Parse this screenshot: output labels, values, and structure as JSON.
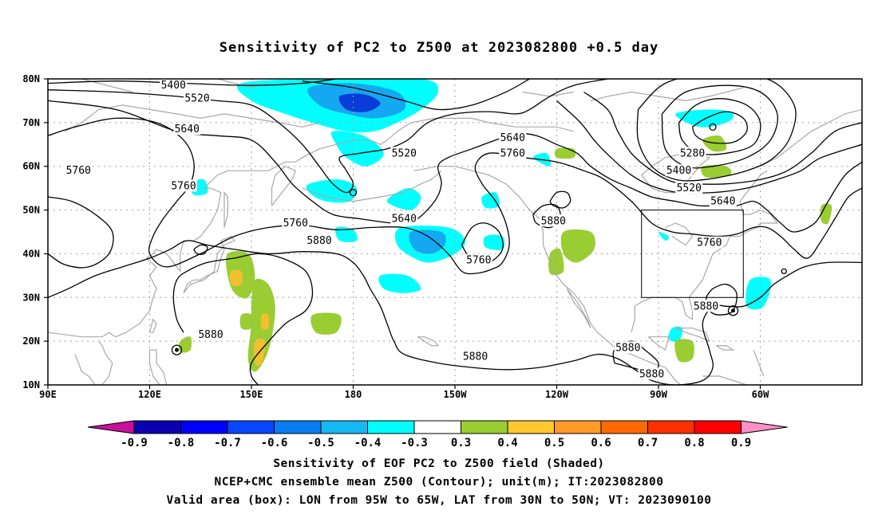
{
  "title": "Sensitivity of PC2 to Z500 at 2023082800 +0.5 day",
  "map": {
    "lat_labels": [
      "80N",
      "70N",
      "60N",
      "50N",
      "40N",
      "30N",
      "20N",
      "10N"
    ],
    "lon_labels": [
      "90E",
      "120E",
      "150E",
      "180",
      "150W",
      "120W",
      "90W",
      "60W"
    ],
    "contour_labels": [
      {
        "text": "5400",
        "lon": 127,
        "lat": 78.5
      },
      {
        "text": "5520",
        "lon": 134,
        "lat": 75.5
      },
      {
        "text": "5640",
        "lon": 131,
        "lat": 68.5
      },
      {
        "text": "5760",
        "lon": 99,
        "lat": 59
      },
      {
        "text": "5760",
        "lon": 130,
        "lat": 55.5
      },
      {
        "text": "5520",
        "lon": 195,
        "lat": 63
      },
      {
        "text": "5640",
        "lon": 227,
        "lat": 66.5
      },
      {
        "text": "5760",
        "lon": 227,
        "lat": 63
      },
      {
        "text": "5640",
        "lon": 195,
        "lat": 48
      },
      {
        "text": "5760",
        "lon": 163,
        "lat": 47
      },
      {
        "text": "5880",
        "lon": 170,
        "lat": 43
      },
      {
        "text": "5760",
        "lon": 217,
        "lat": 38.5
      },
      {
        "text": "5880",
        "lon": 239,
        "lat": 47.5
      },
      {
        "text": "5880",
        "lon": 138,
        "lat": 21.5
      },
      {
        "text": "5880",
        "lon": 216,
        "lat": 16.5
      },
      {
        "text": "5880",
        "lon": 261,
        "lat": 18.5
      },
      {
        "text": "5880",
        "lon": 268,
        "lat": 12.5
      },
      {
        "text": "5280",
        "lon": 280,
        "lat": 63
      },
      {
        "text": "5400",
        "lon": 276,
        "lat": 59
      },
      {
        "text": "5520",
        "lon": 279,
        "lat": 55
      },
      {
        "text": "5640",
        "lon": 289,
        "lat": 52
      },
      {
        "text": "5760",
        "lon": 285,
        "lat": 42.5
      },
      {
        "text": "5880",
        "lon": 284,
        "lat": 28
      }
    ],
    "valid_box": {
      "lon_min": 265,
      "lon_max": 295,
      "lat_min": 30,
      "lat_max": 50
    },
    "colors": {
      "neg_strong": "#0a3cd8",
      "neg_mid": "#15a8f0",
      "neg_weak": "#00ffff",
      "pos_weak": "#9acd32",
      "pos_mid": "#f0c030",
      "coast": "#a8a8a8",
      "grid": "#a0a0a0",
      "contour": "#000000"
    }
  },
  "colorbar": {
    "labels": [
      "-0.9",
      "-0.8",
      "-0.7",
      "-0.6",
      "-0.5",
      "-0.4",
      "-0.3",
      "0.3",
      "0.4",
      "0.5",
      "0.6",
      "0.7",
      "0.8",
      "0.9"
    ],
    "colors": [
      "#c8109a",
      "#0a00b0",
      "#0000ff",
      "#0a46ff",
      "#0a7ef0",
      "#15b8f0",
      "#00ffff",
      "#ffffff",
      "#9acd32",
      "#ffc830",
      "#ff9a28",
      "#ff6a00",
      "#ff3000",
      "#ff0000",
      "#ff90c8"
    ]
  },
  "footer": {
    "line1": "Sensitivity of EOF PC2 to Z500 field (Shaded)",
    "line2": "NCEP+CMC ensemble mean Z500 (Contour); unit(m); IT:2023082800",
    "line3": "Valid area (box): LON from 95W to 65W, LAT from 30N to 50N; VT: 2023090100"
  }
}
